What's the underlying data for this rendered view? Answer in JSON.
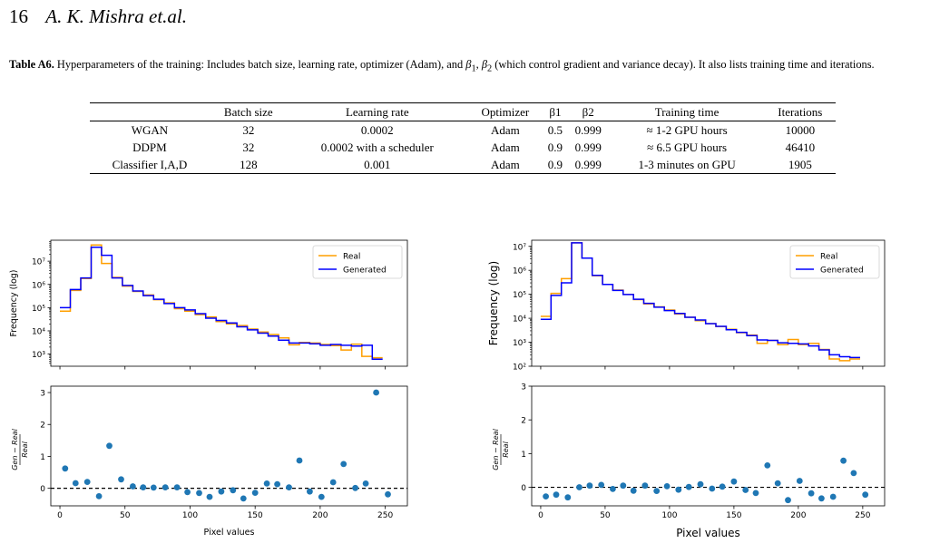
{
  "header": {
    "page_number": "16",
    "authors": "A. K. Mishra et.al."
  },
  "caption": {
    "label": "Table A6.",
    "text_before_b1": " Hyperparameters of the training: Includes batch size, learning rate, optimizer (Adam), and ",
    "b1": "β",
    "b1_sub": "1",
    "sep": ", ",
    "b2": "β",
    "b2_sub": "2",
    "text_after": " (which control gradient and variance decay). It also lists training time and iterations."
  },
  "table": {
    "columns": [
      "",
      "Batch size",
      "Learning rate",
      "Optimizer",
      "β1",
      "β2",
      "Training time",
      "Iterations"
    ],
    "rows": [
      [
        "WGAN",
        "32",
        "0.0002",
        "Adam",
        "0.5",
        "0.999",
        "≈ 1-2 GPU hours",
        "10000"
      ],
      [
        "DDPM",
        "32",
        "0.0002 with a scheduler",
        "Adam",
        "0.9",
        "0.999",
        "≈ 6.5 GPU hours",
        "46410"
      ],
      [
        "Classifier I,A,D",
        "128",
        "0.001",
        "Adam",
        "0.9",
        "0.999",
        "1-3 minutes on GPU",
        "1905"
      ]
    ]
  },
  "chart_data": [
    {
      "type": "line",
      "panel": "left-top",
      "ylabel": "Frequency (log)",
      "yscale": "log",
      "ylim": [
        300,
        80000000
      ],
      "xlim": [
        -7,
        267
      ],
      "yticks": [
        "10³",
        "10⁴",
        "10⁵",
        "10⁶",
        "10⁷"
      ],
      "legend_position": "top-right",
      "legend": [
        "Real",
        "Generated"
      ],
      "bin_edges": [
        0,
        8,
        16,
        24,
        32,
        40,
        48,
        56,
        64,
        72,
        80,
        88,
        96,
        104,
        112,
        120,
        128,
        136,
        144,
        152,
        160,
        168,
        176,
        184,
        192,
        200,
        208,
        216,
        224,
        232,
        240,
        248
      ],
      "series": [
        {
          "name": "Real",
          "color": "#ff9f00",
          "values": [
            70000,
            550000,
            1800000,
            50000000,
            8000000,
            2000000,
            850000,
            500000,
            350000,
            220000,
            160000,
            90000,
            70000,
            50000,
            40000,
            25000,
            20000,
            17000,
            12000,
            9000,
            7000,
            5000,
            2500,
            3200,
            3000,
            2600,
            2300,
            1500,
            2700,
            800,
            700
          ]
        },
        {
          "name": "Generated",
          "color": "#0000ff",
          "values": [
            100000,
            600000,
            1900000,
            40000000,
            18000000,
            1900000,
            900000,
            520000,
            330000,
            230000,
            150000,
            100000,
            80000,
            55000,
            35000,
            28000,
            22000,
            15000,
            11000,
            8000,
            6000,
            4000,
            3000,
            3000,
            2800,
            2400,
            2600,
            2400,
            2200,
            2400,
            600
          ]
        }
      ]
    },
    {
      "type": "scatter",
      "panel": "left-bottom",
      "xlabel": "Pixel values",
      "ylim": [
        -0.55,
        3.2
      ],
      "xlim": [
        -7,
        267
      ],
      "xticks": [
        0,
        50,
        100,
        150,
        200,
        250
      ],
      "yticks": [
        0,
        1,
        2,
        3
      ],
      "reference_line_y": 0,
      "x": [
        4,
        12,
        21,
        30,
        38,
        47,
        56,
        64,
        72,
        81,
        90,
        98,
        107,
        115,
        124,
        133,
        141,
        150,
        159,
        167,
        176,
        184,
        192,
        201,
        210,
        218,
        227,
        235,
        243,
        252
      ],
      "values": [
        0.62,
        0.16,
        0.2,
        -0.25,
        1.33,
        0.28,
        0.06,
        0.03,
        0.02,
        0.03,
        0.03,
        -0.12,
        -0.15,
        -0.27,
        -0.1,
        -0.06,
        -0.32,
        -0.14,
        0.15,
        0.13,
        0.03,
        0.87,
        -0.1,
        -0.27,
        0.19,
        0.76,
        0.01,
        0.15,
        3.0,
        -0.19
      ]
    },
    {
      "type": "line",
      "panel": "right-top",
      "ylabel": "Frequency (log)",
      "yscale": "log",
      "ylim": [
        100,
        18000000
      ],
      "xlim": [
        -7,
        267
      ],
      "yticks": [
        "10²",
        "10³",
        "10⁴",
        "10⁵",
        "10⁶",
        "10⁷"
      ],
      "legend_position": "top-right",
      "legend": [
        "Real",
        "Generated"
      ],
      "bin_edges": [
        0,
        8,
        16,
        24,
        32,
        40,
        48,
        56,
        64,
        72,
        80,
        88,
        96,
        104,
        112,
        120,
        128,
        136,
        144,
        152,
        160,
        168,
        176,
        184,
        192,
        200,
        208,
        216,
        224,
        232,
        240,
        248
      ],
      "series": [
        {
          "name": "Real",
          "color": "#ff9f00",
          "values": [
            12000,
            110000,
            450000,
            14000000,
            3200000,
            600000,
            260000,
            150000,
            100000,
            60000,
            40000,
            30000,
            22000,
            15000,
            11000,
            8000,
            6000,
            4500,
            3500,
            2500,
            2000,
            900,
            1200,
            800,
            1300,
            800,
            900,
            500,
            200,
            170,
            200
          ]
        },
        {
          "name": "Generated",
          "color": "#0000ff",
          "values": [
            9000,
            90000,
            300000,
            14000000,
            3200000,
            620000,
            260000,
            145000,
            98000,
            62000,
            42000,
            29000,
            21000,
            16000,
            11000,
            8500,
            6000,
            4600,
            3300,
            2600,
            1900,
            1250,
            1200,
            950,
            900,
            850,
            700,
            480,
            300,
            250,
            230
          ]
        }
      ]
    },
    {
      "type": "scatter",
      "panel": "right-bottom",
      "xlabel": "Pixel values",
      "ylim": [
        -0.55,
        3.0
      ],
      "xlim": [
        -7,
        267
      ],
      "xticks": [
        0,
        50,
        100,
        150,
        200,
        250
      ],
      "yticks": [
        0,
        1,
        2,
        3
      ],
      "reference_line_y": 0,
      "x": [
        4,
        12,
        21,
        30,
        38,
        47,
        56,
        64,
        72,
        81,
        90,
        98,
        107,
        115,
        124,
        133,
        141,
        150,
        159,
        167,
        176,
        184,
        192,
        201,
        210,
        218,
        227,
        235,
        243,
        252
      ],
      "values": [
        -0.27,
        -0.22,
        -0.3,
        0.0,
        0.05,
        0.07,
        -0.05,
        0.05,
        -0.1,
        0.05,
        -0.11,
        0.03,
        -0.07,
        0.01,
        0.09,
        -0.04,
        0.02,
        0.17,
        -0.08,
        -0.17,
        0.65,
        0.12,
        -0.38,
        0.19,
        -0.18,
        -0.33,
        -0.28,
        0.79,
        0.42,
        -0.22
      ]
    }
  ]
}
